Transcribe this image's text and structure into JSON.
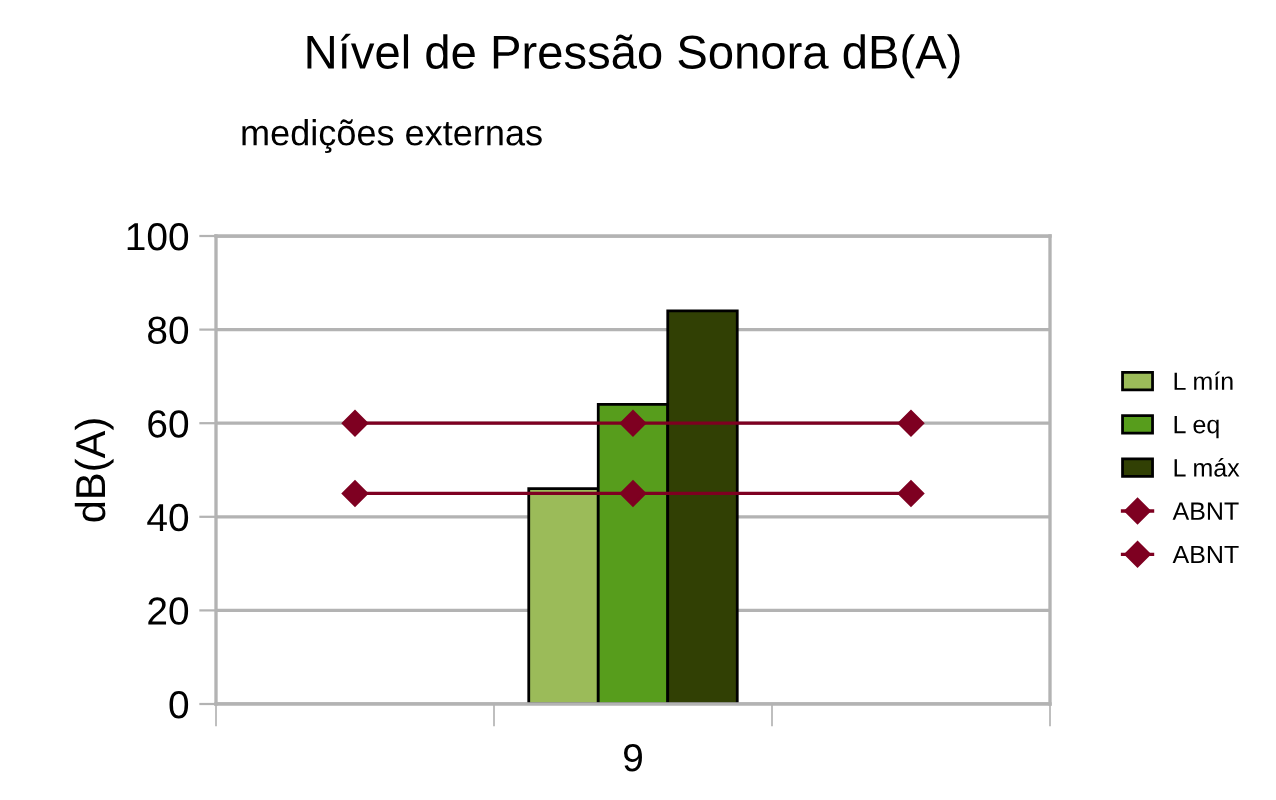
{
  "chart_data": {
    "type": "bar",
    "title": "Nível de Pressão Sonora dB(A)",
    "subtitle": "medições externas",
    "ylabel": "dB(A)",
    "categories": [
      null,
      "9",
      null
    ],
    "series": [
      {
        "name": "L mín",
        "color": "#9bbb59",
        "values": [
          null,
          46,
          null
        ]
      },
      {
        "name": "L eq",
        "color": "#579d1c",
        "values": [
          null,
          64,
          null
        ]
      },
      {
        "name": "L máx",
        "color": "#314004",
        "values": [
          null,
          84,
          null
        ]
      },
      {
        "name": "ABNT",
        "type": "line",
        "color": "#7e0021",
        "values": [
          60,
          60,
          60
        ],
        "marker": "diamond"
      },
      {
        "name": "ABNT",
        "type": "line",
        "color": "#7e0021",
        "values": [
          45,
          45,
          45
        ],
        "marker": "diamond"
      }
    ],
    "ylim": [
      0,
      100
    ],
    "yticks": [
      0,
      20,
      40,
      60,
      80,
      100
    ],
    "grid": "y",
    "legend": "right"
  }
}
